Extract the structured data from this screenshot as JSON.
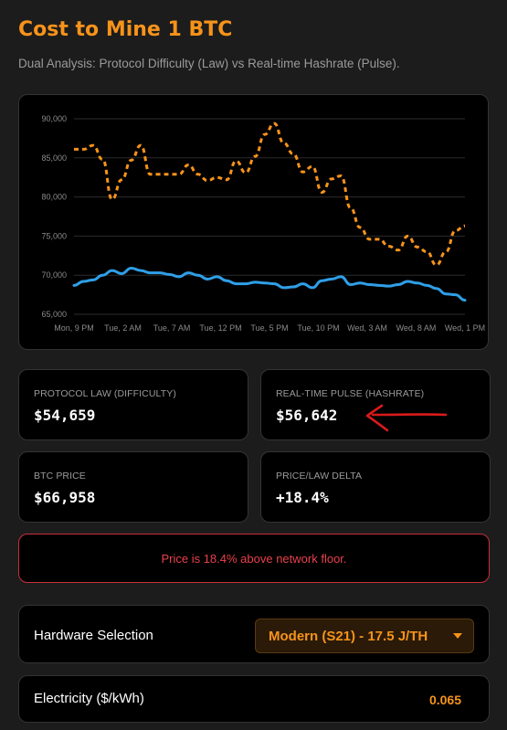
{
  "page": {
    "title": "Cost to Mine 1 BTC",
    "subtitle": "Dual Analysis: Protocol Difficulty (Law) vs Real-time Hashrate (Pulse)."
  },
  "colors": {
    "accent": "#f7931a",
    "law_line": "#f7931a",
    "pulse_line": "#2f9fe8",
    "alert": "#e8414c"
  },
  "chart_data": {
    "type": "line",
    "x_tick_labels": [
      "Mon, 9 PM",
      "Tue, 2 AM",
      "Tue, 7 AM",
      "Tue, 12 PM",
      "Tue, 5 PM",
      "Tue, 10 PM",
      "Wed, 3 AM",
      "Wed, 8 AM",
      "Wed, 1 PM"
    ],
    "y_tick_labels": [
      "90,000",
      "85,000",
      "80,000",
      "75,000",
      "70,000",
      "65,000"
    ],
    "ylim": [
      65000,
      90000
    ],
    "grid": true,
    "series": [
      {
        "line_style": "dashed",
        "color": "#f7931a",
        "values": [
          86100,
          86100,
          86600,
          84800,
          79700,
          82200,
          84700,
          86600,
          82900,
          82900,
          82900,
          82900,
          84100,
          82900,
          82100,
          82500,
          82200,
          84600,
          83100,
          85200,
          88000,
          89400,
          86900,
          85500,
          83200,
          83900,
          80600,
          82300,
          82700,
          78600,
          76100,
          74600,
          74600,
          73700,
          73200,
          75000,
          73600,
          73000,
          71300,
          73000,
          75700,
          76300
        ]
      },
      {
        "line_style": "solid",
        "color": "#2f9fe8",
        "values": [
          68700,
          69200,
          69400,
          70000,
          70600,
          70200,
          70900,
          70600,
          70300,
          70300,
          70100,
          69800,
          70300,
          70000,
          69500,
          69800,
          69300,
          68900,
          68900,
          69100,
          69000,
          68900,
          68400,
          68500,
          68900,
          68400,
          69300,
          69500,
          69800,
          68800,
          69000,
          68800,
          68700,
          68600,
          68800,
          69200,
          69000,
          68700,
          68300,
          67600,
          67500,
          66800
        ]
      }
    ]
  },
  "stats": {
    "protocol_law": {
      "label": "PROTOCOL LAW (DIFFICULTY)",
      "value": "$54,659"
    },
    "realtime_pulse": {
      "label": "REAL-TIME PULSE (HASHRATE)",
      "value": "$56,642"
    },
    "btc_price": {
      "label": "BTC PRICE",
      "value": "$66,958"
    },
    "price_law_delta": {
      "label": "PRICE/LAW DELTA",
      "value": "+18.4%"
    }
  },
  "alert": {
    "text": "Price is 18.4% above network floor."
  },
  "hardware": {
    "label": "Hardware Selection",
    "selected": "Modern (S21) - 17.5 J/TH"
  },
  "electricity": {
    "label": "Electricity ($/kWh)",
    "value": "0.065"
  }
}
